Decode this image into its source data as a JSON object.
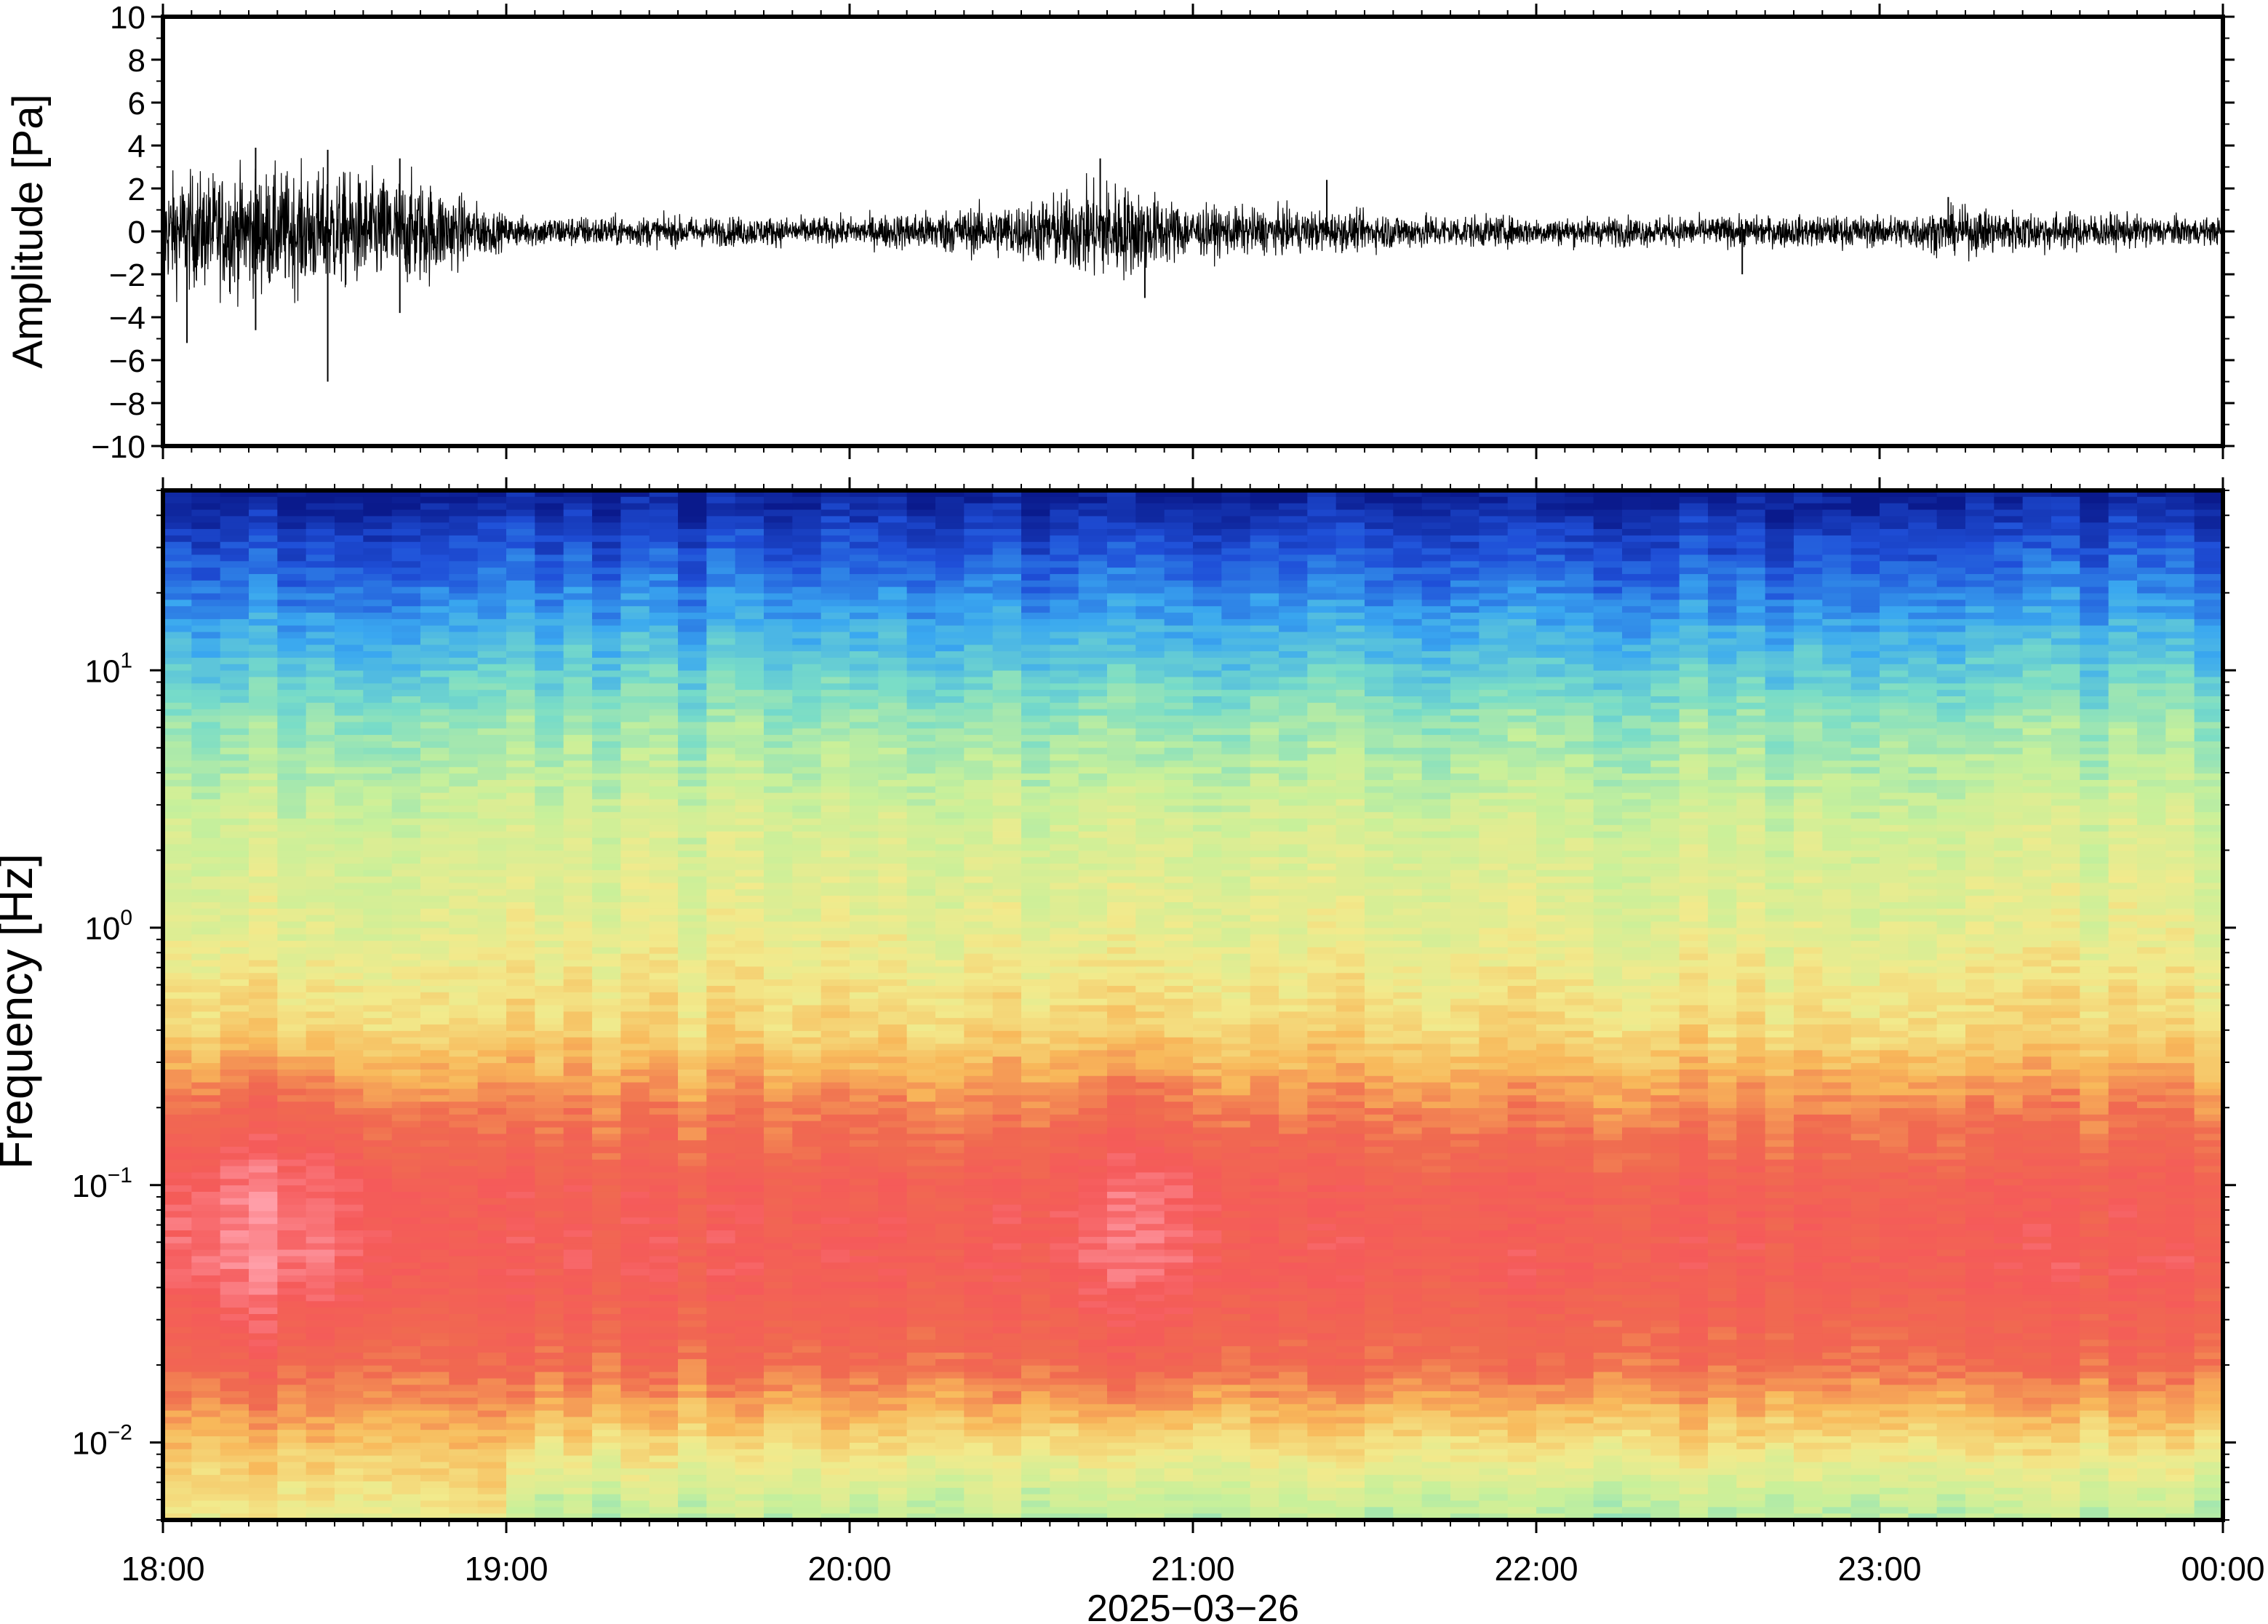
{
  "chart_data": [
    {
      "type": "line",
      "panel": "waveform",
      "ylabel": "Amplitude [Pa]",
      "ylim": [
        -10,
        10
      ],
      "yticks": [
        -10,
        -8,
        -6,
        -4,
        -2,
        0,
        2,
        4,
        6,
        8,
        10
      ],
      "ytick_labels": [
        "−10",
        "−8",
        "−6",
        "−4",
        "−2",
        "0",
        "2",
        "4",
        "6",
        "8",
        "10"
      ],
      "xlim_hours": [
        18,
        24
      ],
      "grid": false,
      "series": [
        {
          "values_note_hours": [
            18.0,
            18.25,
            18.5,
            18.75,
            19.0,
            20.0,
            20.5,
            20.75,
            21.0,
            21.5,
            22.0,
            23.0,
            23.25,
            24.0
          ],
          "envelope_pa": [
            3.5,
            3.9,
            3.7,
            3.4,
            1.0,
            0.9,
            1.8,
            3.3,
            1.6,
            1.2,
            0.9,
            1.0,
            1.5,
            0.8
          ]
        }
      ],
      "peaks": [
        {
          "t": 18.07,
          "a": -5.2
        },
        {
          "t": 18.27,
          "a": 3.9
        },
        {
          "t": 18.27,
          "a": -4.6
        },
        {
          "t": 18.48,
          "a": -7.0
        },
        {
          "t": 18.48,
          "a": 3.8
        },
        {
          "t": 18.69,
          "a": 3.4
        },
        {
          "t": 18.69,
          "a": -3.8
        },
        {
          "t": 20.73,
          "a": 3.4
        },
        {
          "t": 20.86,
          "a": -3.1
        },
        {
          "t": 21.39,
          "a": 2.4
        },
        {
          "t": 22.6,
          "a": -2.0
        },
        {
          "t": 23.2,
          "a": 1.6
        }
      ]
    },
    {
      "type": "heatmap",
      "panel": "spectrogram",
      "ylabel": "Frequency [Hz]",
      "yscale": "log",
      "ylim": [
        0.005,
        50
      ],
      "yticks": [
        0.01,
        0.1,
        1,
        10
      ],
      "ytick_labels": [
        {
          "base": "10",
          "exp": "−2"
        },
        {
          "base": "10",
          "exp": "−1"
        },
        {
          "base": "10",
          "exp": "0"
        },
        {
          "base": "10",
          "exp": "1"
        }
      ],
      "xlim_hours": [
        18,
        24
      ],
      "xtick_labels": [
        "18:00",
        "19:00",
        "20:00",
        "21:00",
        "22:00",
        "23:00",
        "00:00"
      ],
      "xlabel": "2025−03−26",
      "colormap": [
        "#0a1a8c",
        "#1f4fd8",
        "#3aa8f0",
        "#78dcc8",
        "#c8f09a",
        "#f2ea8c",
        "#f8b85a",
        "#f06a50",
        "#f55a5a",
        "#ff9ea8"
      ],
      "grid": false
    }
  ]
}
